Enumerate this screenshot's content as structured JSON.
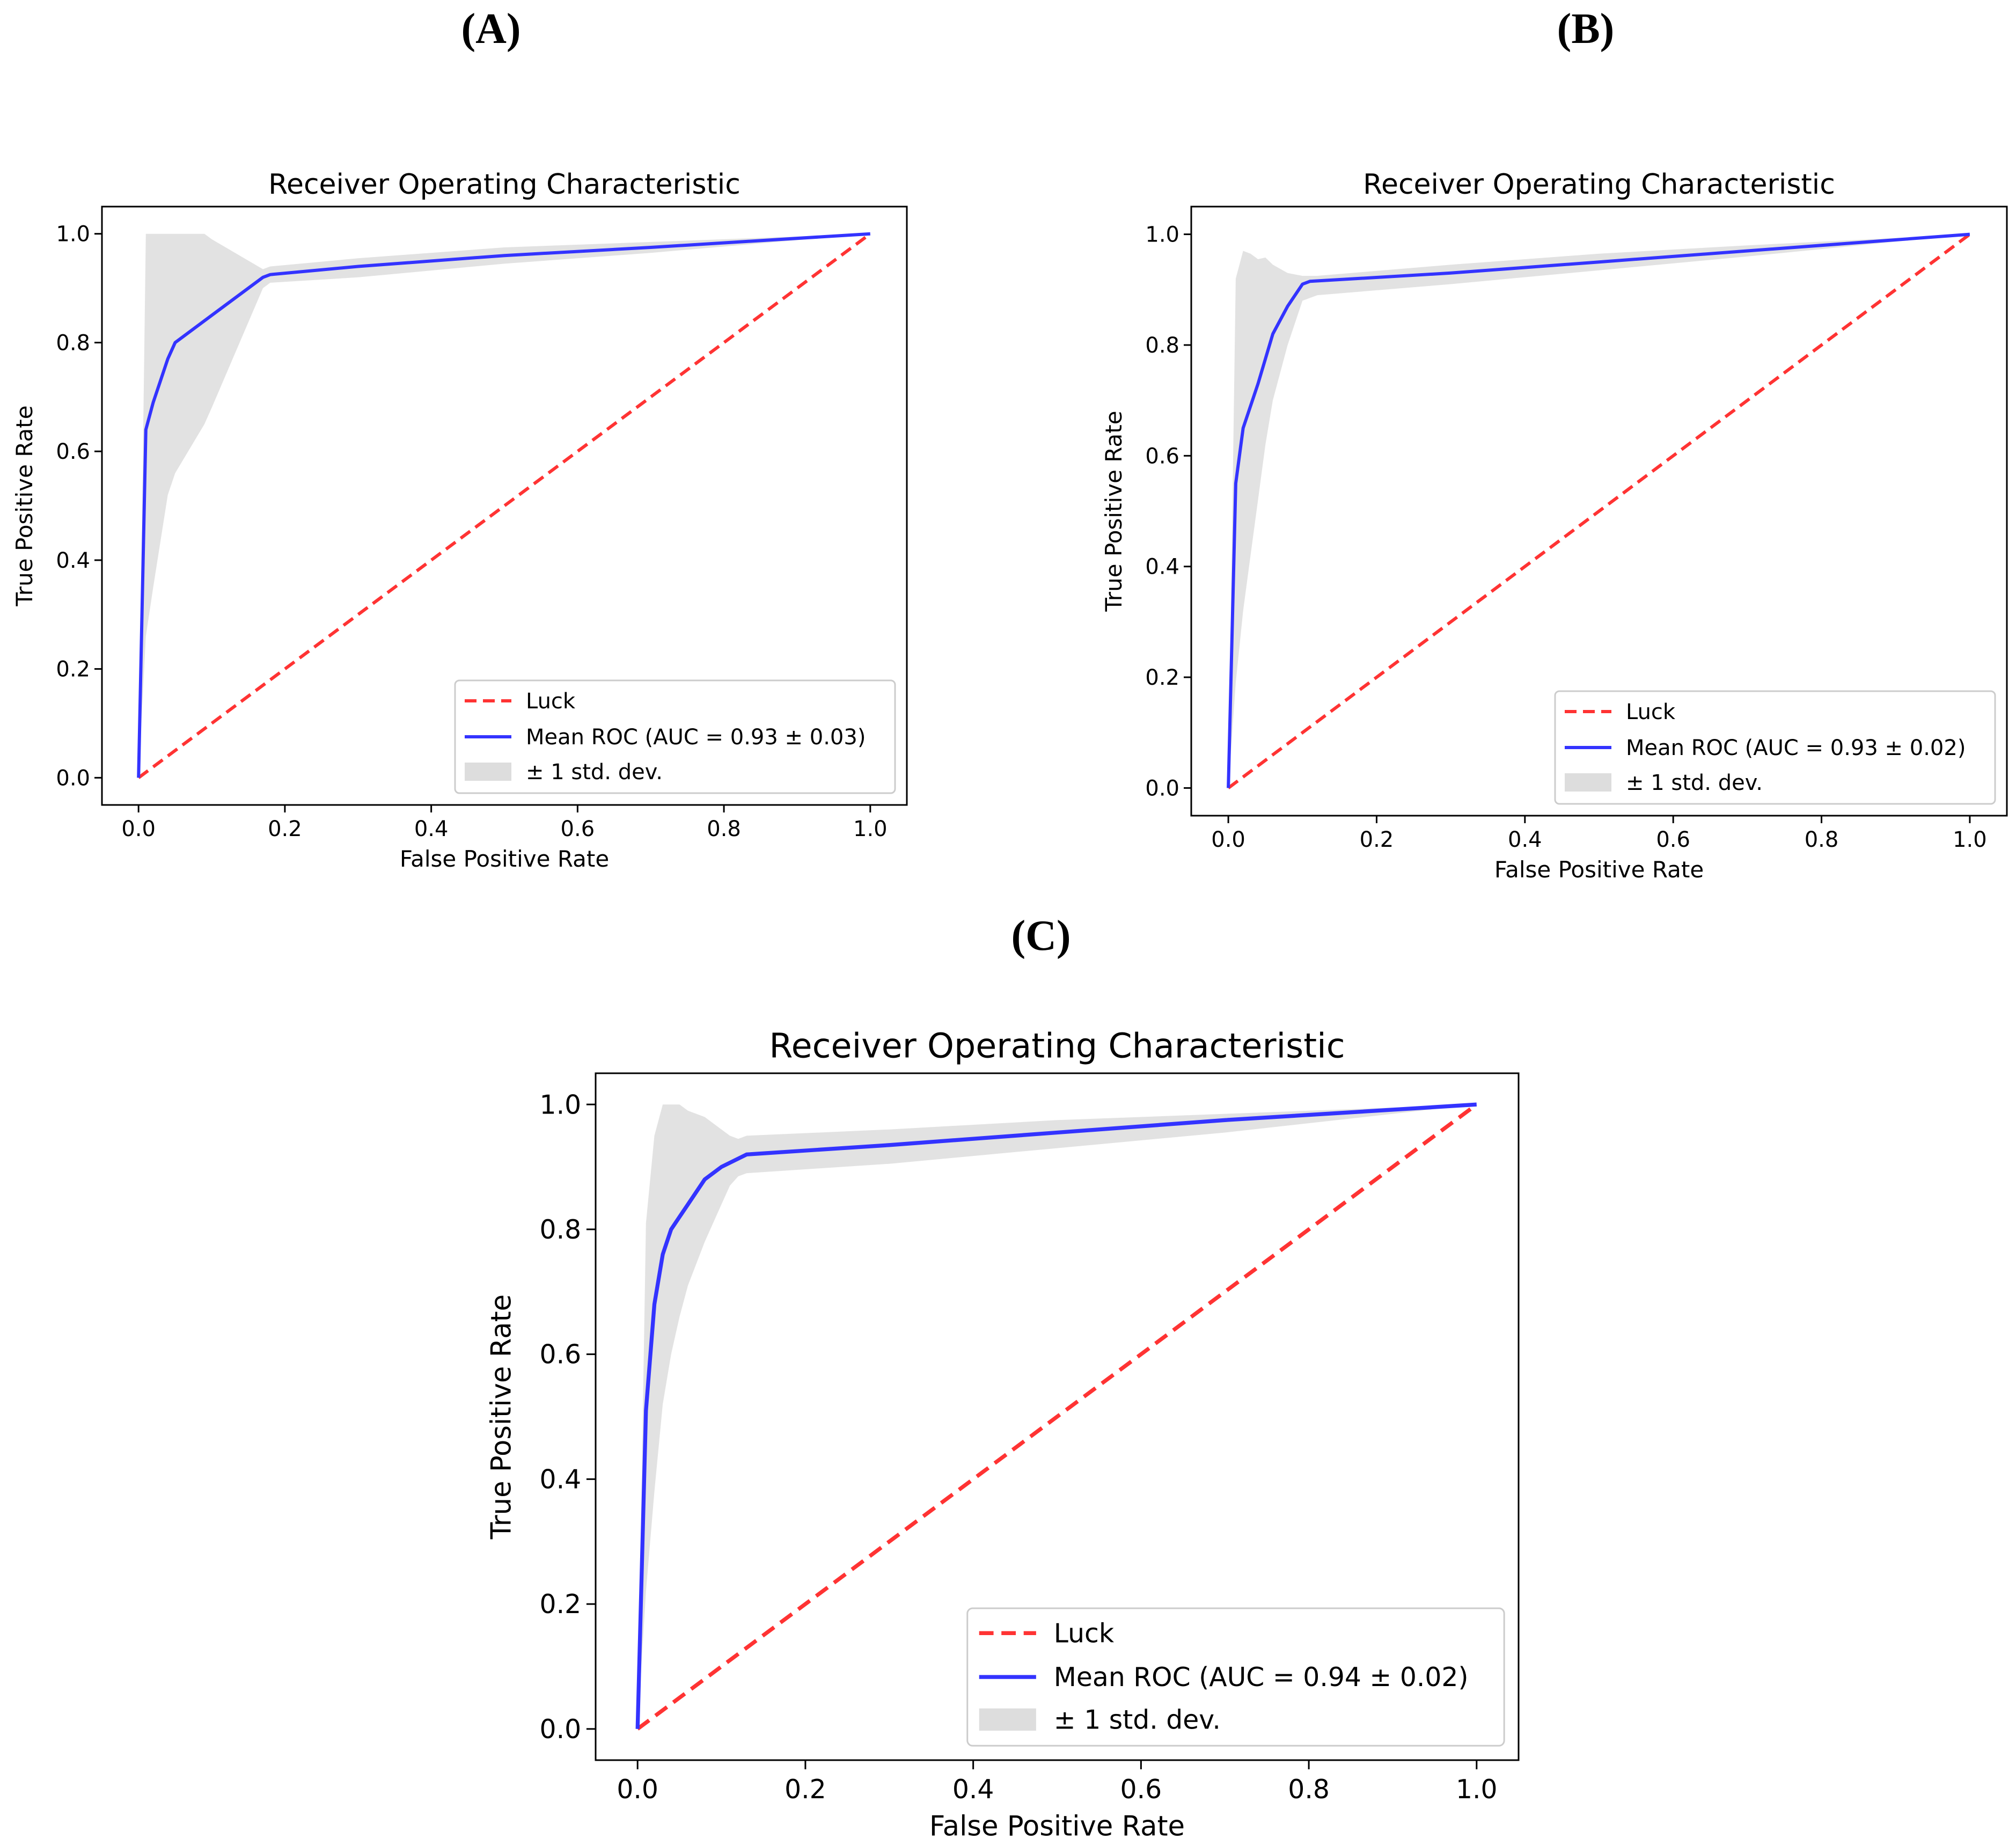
{
  "panels": [
    {
      "label": "(A)"
    },
    {
      "label": "(B)"
    },
    {
      "label": "(C)"
    }
  ],
  "colors": {
    "luck": "#ff3333",
    "mean_roc": "#3333ff",
    "band": "#dddddd",
    "axes": "#000000"
  },
  "chart_data": [
    {
      "type": "line",
      "panel": "(A)",
      "title": "Receiver Operating Characteristic",
      "xlabel": "False Positive Rate",
      "ylabel": "True Positive Rate",
      "xlim": [
        -0.05,
        1.05
      ],
      "ylim": [
        -0.05,
        1.05
      ],
      "xticks": [
        "0.0",
        "0.2",
        "0.4",
        "0.6",
        "0.8",
        "1.0"
      ],
      "yticks": [
        "0.0",
        "0.2",
        "0.4",
        "0.6",
        "0.8",
        "1.0"
      ],
      "legend_position": "lower-right",
      "legend": [
        "Luck",
        "Mean ROC (AUC = 0.93 ± 0.03)",
        "± 1 std. dev."
      ],
      "series": [
        {
          "name": "Luck",
          "style": "dashed",
          "x": [
            0,
            1
          ],
          "y": [
            0,
            1
          ]
        },
        {
          "name": "Mean ROC (AUC = 0.93 ± 0.03)",
          "style": "solid",
          "x": [
            0,
            0.01,
            0.02,
            0.04,
            0.05,
            0.1,
            0.17,
            0.18,
            0.3,
            0.5,
            0.7,
            1.0
          ],
          "y": [
            0,
            0.64,
            0.69,
            0.77,
            0.8,
            0.85,
            0.92,
            0.925,
            0.94,
            0.96,
            0.975,
            1.0
          ]
        },
        {
          "name": "± 1 std. dev.",
          "style": "band",
          "x": [
            0,
            0.01,
            0.02,
            0.04,
            0.05,
            0.09,
            0.1,
            0.17,
            0.18,
            0.3,
            0.5,
            0.7,
            1.0
          ],
          "lower": [
            0,
            0.26,
            0.35,
            0.52,
            0.56,
            0.65,
            0.68,
            0.9,
            0.91,
            0.92,
            0.945,
            0.965,
            1.0
          ],
          "upper": [
            0,
            1.0,
            1.0,
            1.0,
            1.0,
            1.0,
            0.99,
            0.935,
            0.94,
            0.955,
            0.975,
            0.985,
            1.0
          ]
        }
      ]
    },
    {
      "type": "line",
      "panel": "(B)",
      "title": "Receiver Operating Characteristic",
      "xlabel": "False Positive Rate",
      "ylabel": "True Positive Rate",
      "xlim": [
        -0.05,
        1.05
      ],
      "ylim": [
        -0.05,
        1.05
      ],
      "xticks": [
        "0.0",
        "0.2",
        "0.4",
        "0.6",
        "0.8",
        "1.0"
      ],
      "yticks": [
        "0.0",
        "0.2",
        "0.4",
        "0.6",
        "0.8",
        "1.0"
      ],
      "legend_position": "lower-right",
      "legend": [
        "Luck",
        "Mean ROC (AUC = 0.93 ± 0.02)",
        "± 1 std. dev."
      ],
      "series": [
        {
          "name": "Luck",
          "style": "dashed",
          "x": [
            0,
            1
          ],
          "y": [
            0,
            1
          ]
        },
        {
          "name": "Mean ROC (AUC = 0.93 ± 0.02)",
          "style": "solid",
          "x": [
            0,
            0.01,
            0.02,
            0.04,
            0.06,
            0.08,
            0.1,
            0.11,
            0.3,
            0.5,
            0.7,
            1.0
          ],
          "y": [
            0,
            0.55,
            0.65,
            0.73,
            0.82,
            0.87,
            0.91,
            0.915,
            0.93,
            0.95,
            0.97,
            1.0
          ]
        },
        {
          "name": "± 1 std. dev.",
          "style": "band",
          "x": [
            0,
            0.01,
            0.02,
            0.03,
            0.04,
            0.05,
            0.06,
            0.08,
            0.1,
            0.12,
            0.3,
            0.5,
            0.7,
            1.0
          ],
          "lower": [
            0,
            0.19,
            0.32,
            0.42,
            0.52,
            0.62,
            0.7,
            0.8,
            0.88,
            0.89,
            0.91,
            0.935,
            0.96,
            1.0
          ],
          "upper": [
            0,
            0.92,
            0.97,
            0.965,
            0.955,
            0.958,
            0.945,
            0.93,
            0.925,
            0.925,
            0.945,
            0.965,
            0.98,
            1.0
          ]
        }
      ]
    },
    {
      "type": "line",
      "panel": "(C)",
      "title": "Receiver Operating Characteristic",
      "xlabel": "False Positive Rate",
      "ylabel": "True Positive Rate",
      "xlim": [
        -0.05,
        1.05
      ],
      "ylim": [
        -0.05,
        1.05
      ],
      "xticks": [
        "0.0",
        "0.2",
        "0.4",
        "0.6",
        "0.8",
        "1.0"
      ],
      "yticks": [
        "0.0",
        "0.2",
        "0.4",
        "0.6",
        "0.8",
        "1.0"
      ],
      "legend_position": "lower-right",
      "legend": [
        "Luck",
        "Mean ROC (AUC = 0.94 ± 0.02)",
        "± 1 std. dev."
      ],
      "series": [
        {
          "name": "Luck",
          "style": "dashed",
          "x": [
            0,
            1
          ],
          "y": [
            0,
            1
          ]
        },
        {
          "name": "Mean ROC (AUC = 0.94 ± 0.02)",
          "style": "solid",
          "x": [
            0,
            0.01,
            0.02,
            0.03,
            0.04,
            0.06,
            0.08,
            0.1,
            0.13,
            0.3,
            0.5,
            0.7,
            1.0
          ],
          "y": [
            0,
            0.51,
            0.68,
            0.76,
            0.8,
            0.84,
            0.88,
            0.9,
            0.92,
            0.935,
            0.955,
            0.975,
            1.0
          ]
        },
        {
          "name": "± 1 std. dev.",
          "style": "band",
          "x": [
            0,
            0.01,
            0.02,
            0.03,
            0.04,
            0.05,
            0.06,
            0.08,
            0.1,
            0.11,
            0.12,
            0.13,
            0.3,
            0.5,
            0.7,
            1.0
          ],
          "lower": [
            0,
            0.22,
            0.38,
            0.52,
            0.6,
            0.66,
            0.71,
            0.78,
            0.84,
            0.87,
            0.885,
            0.89,
            0.905,
            0.93,
            0.955,
            1.0
          ],
          "upper": [
            0,
            0.81,
            0.95,
            1.0,
            1.0,
            1.0,
            0.99,
            0.98,
            0.96,
            0.95,
            0.945,
            0.95,
            0.96,
            0.975,
            0.985,
            1.0
          ]
        }
      ]
    }
  ]
}
